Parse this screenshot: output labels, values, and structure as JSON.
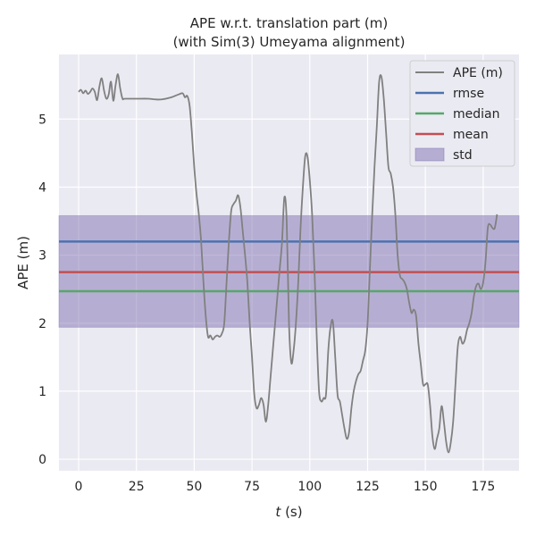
{
  "chart_data": {
    "type": "line",
    "title": "APE w.r.t. translation part (m)",
    "subtitle": "(with Sim(3) Umeyama alignment)",
    "xlabel_var": "t",
    "xlabel_unit": " (s)",
    "ylabel": "APE (m)",
    "xlim": [
      -8.5,
      190.5
    ],
    "ylim": [
      -0.17,
      5.95
    ],
    "xticks": [
      0,
      25,
      50,
      75,
      100,
      125,
      150,
      175
    ],
    "yticks": [
      0,
      1,
      2,
      3,
      4,
      5
    ],
    "grid": true,
    "legend_position": "top-right",
    "legend": [
      "APE (m)",
      "rmse",
      "median",
      "mean",
      "std"
    ],
    "series": [
      {
        "name": "APE (m)",
        "color": "#808080",
        "points": [
          [
            0,
            5.4
          ],
          [
            1,
            5.43
          ],
          [
            2,
            5.38
          ],
          [
            3,
            5.42
          ],
          [
            4,
            5.37
          ],
          [
            5,
            5.4
          ],
          [
            6,
            5.45
          ],
          [
            7,
            5.4
          ],
          [
            8,
            5.28
          ],
          [
            9,
            5.48
          ],
          [
            10,
            5.6
          ],
          [
            11,
            5.42
          ],
          [
            12,
            5.3
          ],
          [
            13,
            5.36
          ],
          [
            14,
            5.55
          ],
          [
            15,
            5.27
          ],
          [
            16,
            5.5
          ],
          [
            17,
            5.66
          ],
          [
            18,
            5.45
          ],
          [
            19,
            5.3
          ],
          [
            20,
            5.3
          ],
          [
            25,
            5.3
          ],
          [
            30,
            5.3
          ],
          [
            33,
            5.29
          ],
          [
            36,
            5.29
          ],
          [
            40,
            5.32
          ],
          [
            43,
            5.36
          ],
          [
            45,
            5.38
          ],
          [
            46,
            5.32
          ],
          [
            47,
            5.34
          ],
          [
            48,
            5.2
          ],
          [
            49,
            4.8
          ],
          [
            50,
            4.3
          ],
          [
            51,
            3.9
          ],
          [
            52,
            3.6
          ],
          [
            53,
            3.2
          ],
          [
            54,
            2.6
          ],
          [
            55,
            2.1
          ],
          [
            56,
            1.8
          ],
          [
            57,
            1.82
          ],
          [
            58,
            1.76
          ],
          [
            59,
            1.8
          ],
          [
            60,
            1.82
          ],
          [
            61,
            1.8
          ],
          [
            62,
            1.85
          ],
          [
            63,
            2.0
          ],
          [
            64,
            2.6
          ],
          [
            65,
            3.2
          ],
          [
            66,
            3.65
          ],
          [
            67,
            3.75
          ],
          [
            68,
            3.8
          ],
          [
            69,
            3.88
          ],
          [
            70,
            3.7
          ],
          [
            71,
            3.35
          ],
          [
            72,
            3.0
          ],
          [
            73,
            2.6
          ],
          [
            74,
            2.0
          ],
          [
            75,
            1.5
          ],
          [
            76,
            0.95
          ],
          [
            77,
            0.75
          ],
          [
            78,
            0.8
          ],
          [
            79,
            0.9
          ],
          [
            80,
            0.8
          ],
          [
            81,
            0.55
          ],
          [
            82,
            0.8
          ],
          [
            83,
            1.2
          ],
          [
            84,
            1.6
          ],
          [
            85,
            2.0
          ],
          [
            86,
            2.4
          ],
          [
            87,
            2.8
          ],
          [
            88,
            3.2
          ],
          [
            89,
            3.85
          ],
          [
            90,
            3.5
          ],
          [
            91,
            2.0
          ],
          [
            92,
            1.42
          ],
          [
            93,
            1.6
          ],
          [
            94,
            2.0
          ],
          [
            95,
            2.6
          ],
          [
            96,
            3.4
          ],
          [
            97,
            4.0
          ],
          [
            98,
            4.45
          ],
          [
            99,
            4.45
          ],
          [
            100,
            4.1
          ],
          [
            101,
            3.6
          ],
          [
            102,
            2.8
          ],
          [
            103,
            1.8
          ],
          [
            104,
            1.0
          ],
          [
            105,
            0.85
          ],
          [
            106,
            0.9
          ],
          [
            107,
            0.95
          ],
          [
            108,
            1.6
          ],
          [
            109,
            1.95
          ],
          [
            110,
            2.02
          ],
          [
            111,
            1.5
          ],
          [
            112,
            0.95
          ],
          [
            113,
            0.85
          ],
          [
            114,
            0.65
          ],
          [
            115,
            0.45
          ],
          [
            116,
            0.3
          ],
          [
            117,
            0.4
          ],
          [
            118,
            0.75
          ],
          [
            119,
            1.0
          ],
          [
            120,
            1.15
          ],
          [
            121,
            1.25
          ],
          [
            122,
            1.3
          ],
          [
            123,
            1.45
          ],
          [
            124,
            1.6
          ],
          [
            125,
            2.0
          ],
          [
            126,
            2.8
          ],
          [
            127,
            3.6
          ],
          [
            128,
            4.3
          ],
          [
            129,
            4.9
          ],
          [
            130,
            5.55
          ],
          [
            131,
            5.62
          ],
          [
            132,
            5.3
          ],
          [
            133,
            4.8
          ],
          [
            134,
            4.3
          ],
          [
            135,
            4.2
          ],
          [
            136,
            4.0
          ],
          [
            137,
            3.6
          ],
          [
            138,
            3.0
          ],
          [
            139,
            2.7
          ],
          [
            140,
            2.65
          ],
          [
            141,
            2.6
          ],
          [
            142,
            2.5
          ],
          [
            143,
            2.3
          ],
          [
            144,
            2.15
          ],
          [
            145,
            2.2
          ],
          [
            146,
            2.1
          ],
          [
            147,
            1.7
          ],
          [
            148,
            1.4
          ],
          [
            149,
            1.1
          ],
          [
            150,
            1.1
          ],
          [
            151,
            1.1
          ],
          [
            152,
            0.8
          ],
          [
            153,
            0.35
          ],
          [
            154,
            0.15
          ],
          [
            155,
            0.3
          ],
          [
            156,
            0.45
          ],
          [
            157,
            0.78
          ],
          [
            158,
            0.55
          ],
          [
            159,
            0.25
          ],
          [
            160,
            0.1
          ],
          [
            161,
            0.25
          ],
          [
            162,
            0.55
          ],
          [
            163,
            1.1
          ],
          [
            164,
            1.65
          ],
          [
            165,
            1.8
          ],
          [
            166,
            1.7
          ],
          [
            167,
            1.75
          ],
          [
            168,
            1.9
          ],
          [
            169,
            2.0
          ],
          [
            170,
            2.15
          ],
          [
            171,
            2.4
          ],
          [
            172,
            2.55
          ],
          [
            173,
            2.58
          ],
          [
            174,
            2.5
          ],
          [
            175,
            2.6
          ],
          [
            176,
            2.9
          ],
          [
            177,
            3.4
          ],
          [
            178,
            3.45
          ],
          [
            179,
            3.4
          ],
          [
            180,
            3.4
          ],
          [
            181,
            3.6
          ]
        ]
      }
    ],
    "stats": {
      "rmse": {
        "label": "rmse",
        "value": 3.2,
        "color": "#4c72b0"
      },
      "median": {
        "label": "median",
        "value": 2.47,
        "color": "#55a868"
      },
      "mean": {
        "label": "mean",
        "value": 2.75,
        "color": "#c44e52"
      },
      "std": {
        "label": "std",
        "low": 1.94,
        "high": 3.58,
        "color": "#8172b2"
      }
    }
  }
}
